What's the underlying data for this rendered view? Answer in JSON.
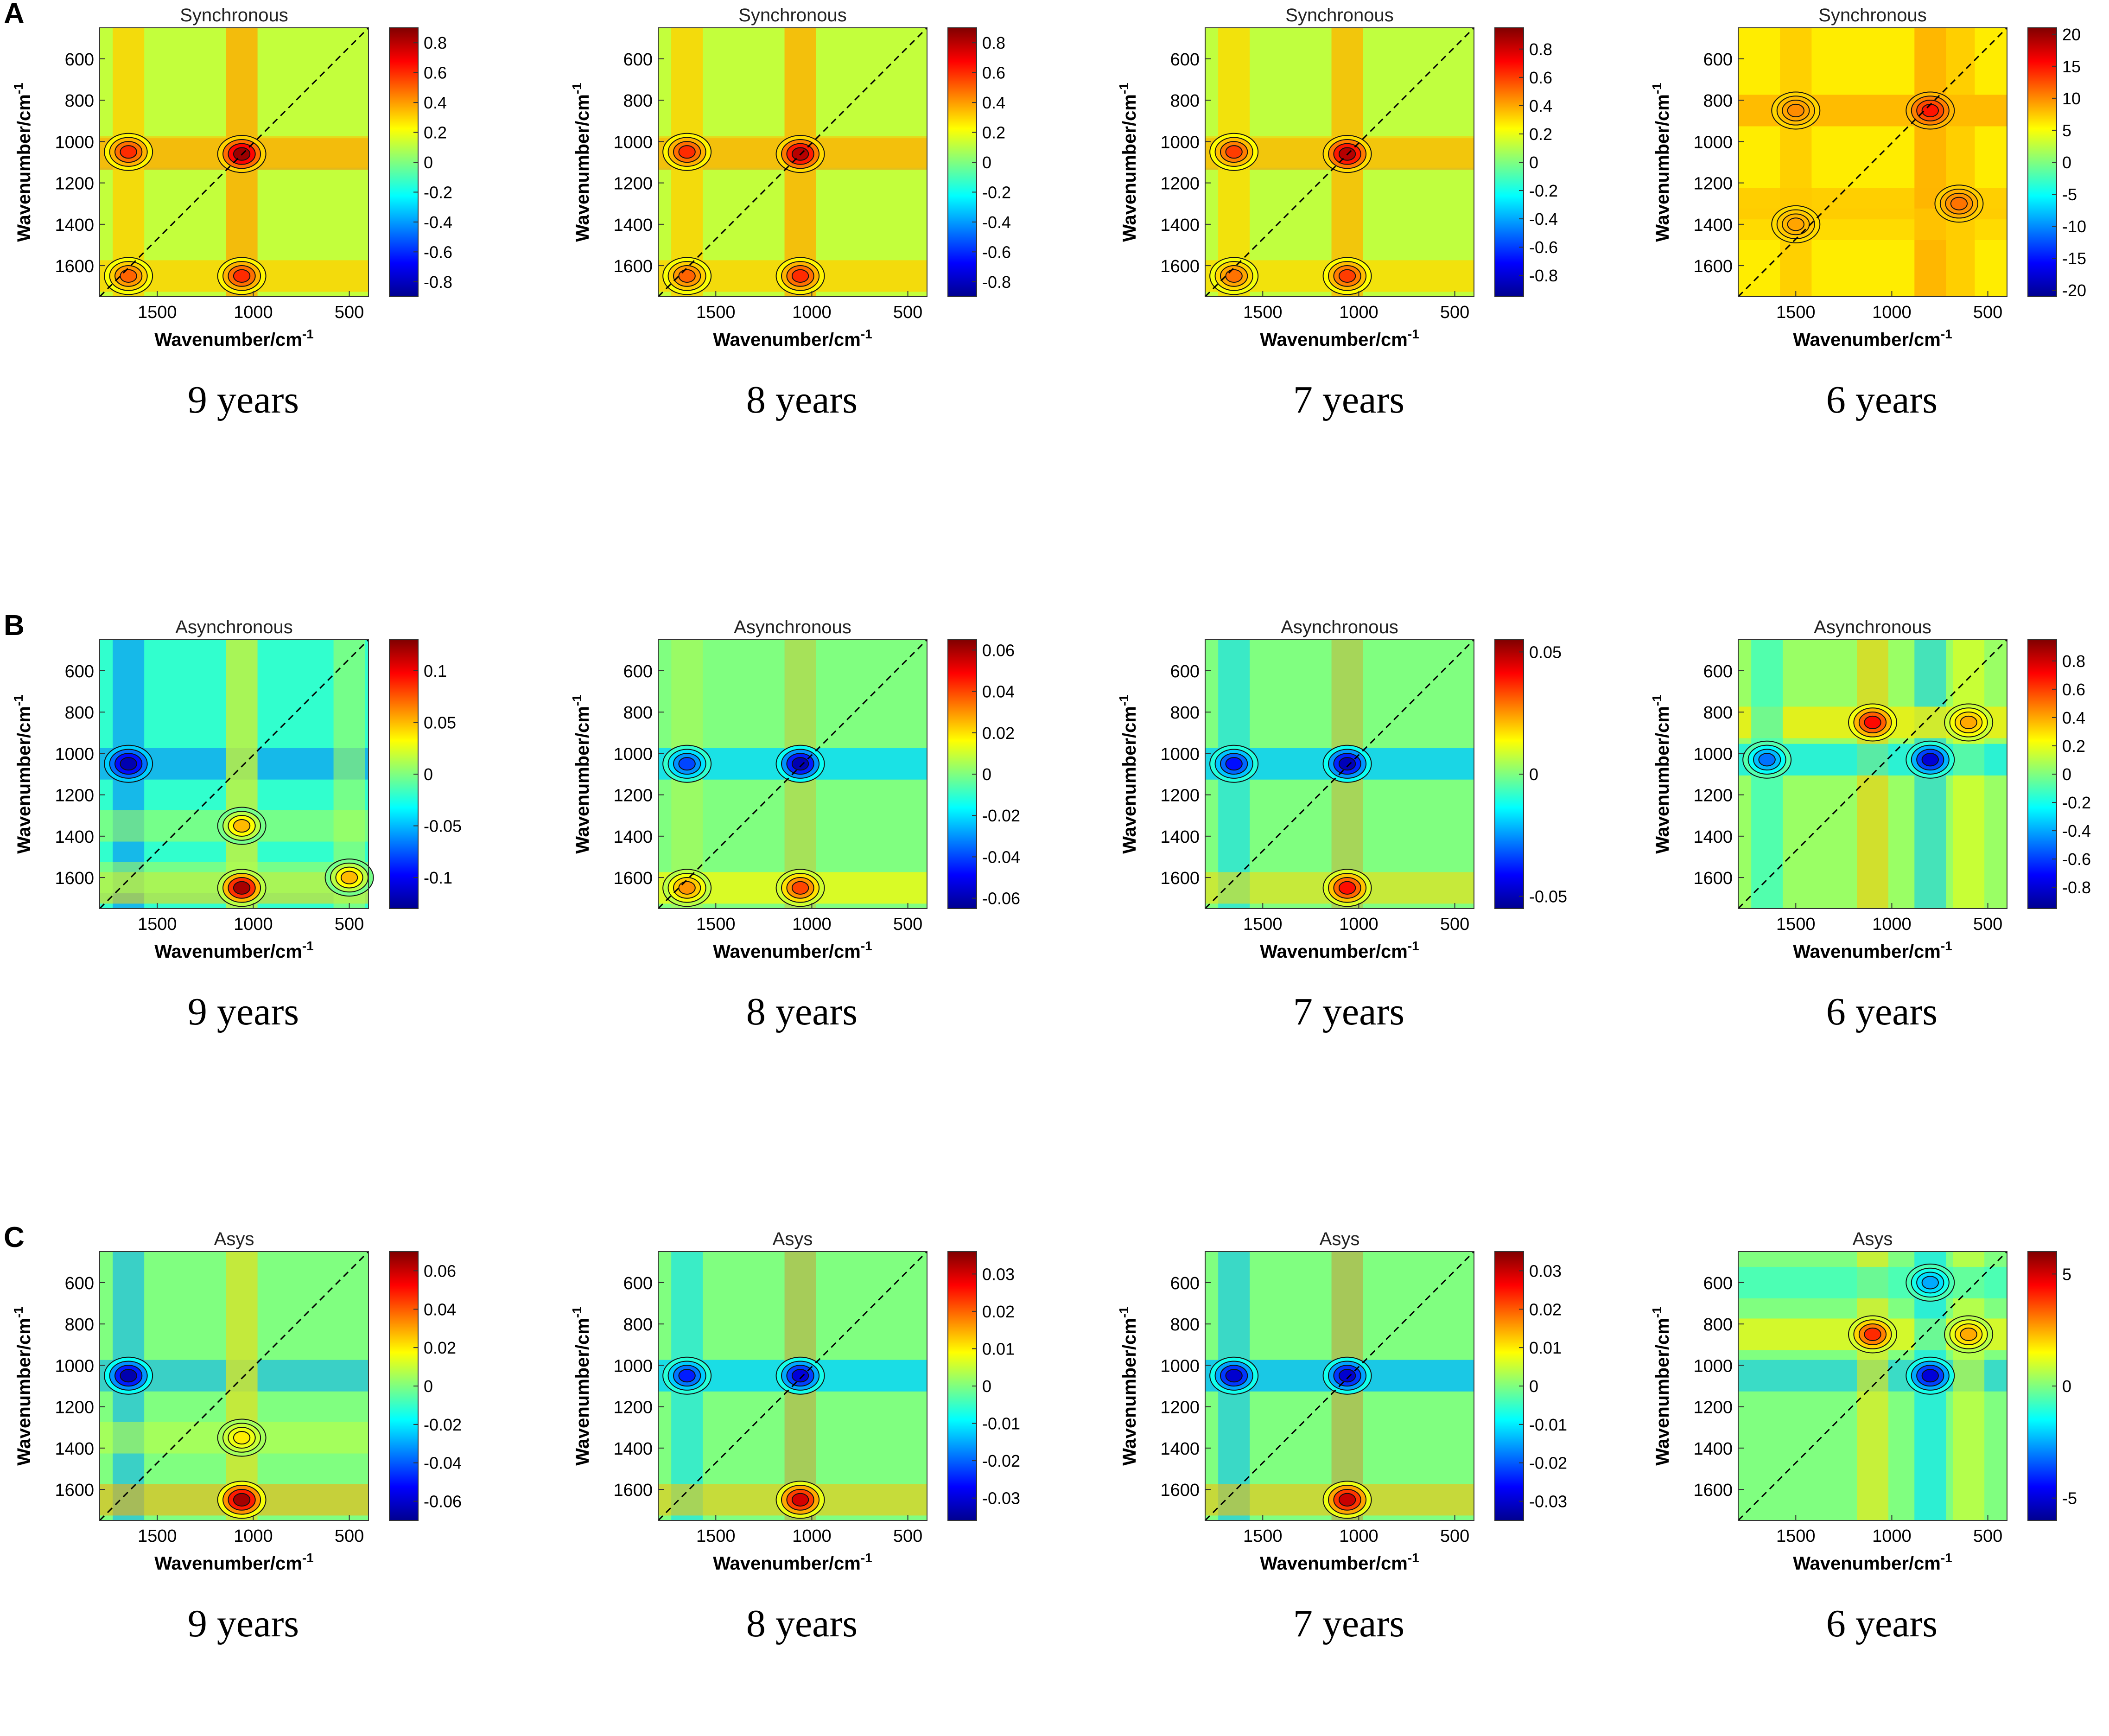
{
  "figure": {
    "rows": [
      {
        "letter": "A",
        "panel_title": "Synchronous"
      },
      {
        "letter": "B",
        "panel_title": "Asynchronous"
      },
      {
        "letter": "C",
        "panel_title": "Asys"
      }
    ],
    "columns": [
      "9 years",
      "8 years",
      "7 years",
      "6 years"
    ],
    "axis_label": "Wavenumber/cm",
    "axis_label_sup": "-1"
  },
  "chart_data": [
    {
      "type": "heatmap",
      "title": "Synchronous",
      "caption": "9 years",
      "xlabel": "Wavenumber/cm-1",
      "ylabel": "Wavenumber/cm-1",
      "x_ticks": [
        1500,
        1000,
        500
      ],
      "y_ticks": [
        600,
        800,
        1000,
        1200,
        1400,
        1600
      ],
      "xlim": [
        1800,
        400
      ],
      "ylim": [
        450,
        1750
      ],
      "colorbar": {
        "min": -0.9,
        "max": 0.9,
        "ticks": [
          -0.8,
          -0.6,
          -0.4,
          -0.2,
          0,
          0.2,
          0.4,
          0.6,
          0.8
        ],
        "labels": [
          "-0.8",
          "-0.6",
          "-0.4",
          "-0.2",
          "0",
          "0.2",
          "0.4",
          "0.6",
          "0.8"
        ]
      },
      "background": 0.12,
      "peaks": [
        {
          "x": 1060,
          "y": 1060,
          "value": 0.85
        },
        {
          "x": 1650,
          "y": 1050,
          "value": 0.6
        },
        {
          "x": 1060,
          "y": 1650,
          "value": 0.6
        },
        {
          "x": 1650,
          "y": 1650,
          "value": 0.5
        }
      ]
    },
    {
      "type": "heatmap",
      "title": "Synchronous",
      "caption": "8 years",
      "xlabel": "Wavenumber/cm-1",
      "ylabel": "Wavenumber/cm-1",
      "x_ticks": [
        1500,
        1000,
        500
      ],
      "y_ticks": [
        600,
        800,
        1000,
        1200,
        1400,
        1600
      ],
      "xlim": [
        1800,
        400
      ],
      "ylim": [
        450,
        1750
      ],
      "colorbar": {
        "min": -0.9,
        "max": 0.9,
        "ticks": [
          -0.8,
          -0.6,
          -0.4,
          -0.2,
          0,
          0.2,
          0.4,
          0.6,
          0.8
        ],
        "labels": [
          "-0.8",
          "-0.6",
          "-0.4",
          "-0.2",
          "0",
          "0.2",
          "0.4",
          "0.6",
          "0.8"
        ]
      },
      "background": 0.12,
      "peaks": [
        {
          "x": 1060,
          "y": 1060,
          "value": 0.8
        },
        {
          "x": 1650,
          "y": 1050,
          "value": 0.6
        },
        {
          "x": 1060,
          "y": 1650,
          "value": 0.6
        },
        {
          "x": 1650,
          "y": 1650,
          "value": 0.5
        }
      ]
    },
    {
      "type": "heatmap",
      "title": "Synchronous",
      "caption": "7 years",
      "xlabel": "Wavenumber/cm-1",
      "ylabel": "Wavenumber/cm-1",
      "x_ticks": [
        1500,
        1000,
        500
      ],
      "y_ticks": [
        600,
        800,
        1000,
        1200,
        1400,
        1600
      ],
      "xlim": [
        1800,
        400
      ],
      "ylim": [
        450,
        1750
      ],
      "colorbar": {
        "min": -0.95,
        "max": 0.95,
        "ticks": [
          -0.8,
          -0.6,
          -0.4,
          -0.2,
          0,
          0.2,
          0.4,
          0.6,
          0.8
        ],
        "labels": [
          "-0.8",
          "-0.6",
          "-0.4",
          "-0.2",
          "0",
          "0.2",
          "0.4",
          "0.6",
          "0.8"
        ]
      },
      "background": 0.12,
      "peaks": [
        {
          "x": 1060,
          "y": 1060,
          "value": 0.85
        },
        {
          "x": 1650,
          "y": 1050,
          "value": 0.6
        },
        {
          "x": 1060,
          "y": 1650,
          "value": 0.6
        },
        {
          "x": 1650,
          "y": 1650,
          "value": 0.5
        }
      ]
    },
    {
      "type": "heatmap",
      "title": "Synchronous",
      "caption": "6 years",
      "xlabel": "Wavenumber/cm-1",
      "ylabel": "Wavenumber/cm-1",
      "x_ticks": [
        1500,
        1000,
        500
      ],
      "y_ticks": [
        600,
        800,
        1000,
        1200,
        1400,
        1600
      ],
      "xlim": [
        1800,
        400
      ],
      "ylim": [
        450,
        1750
      ],
      "colorbar": {
        "min": -21,
        "max": 21,
        "ticks": [
          -20,
          -15,
          -10,
          -5,
          0,
          5,
          10,
          15,
          20
        ],
        "labels": [
          "-20",
          "-15",
          "-10",
          "-5",
          "0",
          "5",
          "10",
          "15",
          "20"
        ]
      },
      "background": 6,
      "peaks": [
        {
          "x": 800,
          "y": 850,
          "value": 15
        },
        {
          "x": 650,
          "y": 1300,
          "value": 11
        },
        {
          "x": 1500,
          "y": 850,
          "value": 10
        },
        {
          "x": 1500,
          "y": 1400,
          "value": 9
        }
      ]
    },
    {
      "type": "heatmap",
      "title": "Asynchronous",
      "caption": "9 years",
      "xlabel": "Wavenumber/cm-1",
      "ylabel": "Wavenumber/cm-1",
      "x_ticks": [
        1500,
        1000,
        500
      ],
      "y_ticks": [
        600,
        800,
        1000,
        1200,
        1400,
        1600
      ],
      "xlim": [
        1800,
        400
      ],
      "ylim": [
        450,
        1750
      ],
      "colorbar": {
        "min": -0.13,
        "max": 0.13,
        "ticks": [
          -0.1,
          -0.05,
          0,
          0.05,
          0.1
        ],
        "labels": [
          "-0.1",
          "-0.05",
          "0",
          "0.05",
          "0.1"
        ]
      },
      "background": -0.02,
      "peaks": [
        {
          "x": 1650,
          "y": 1050,
          "value": -0.12
        },
        {
          "x": 1060,
          "y": 1650,
          "value": 0.12
        },
        {
          "x": 1060,
          "y": 1350,
          "value": 0.05
        },
        {
          "x": 500,
          "y": 1600,
          "value": 0.05
        }
      ]
    },
    {
      "type": "heatmap",
      "title": "Asynchronous",
      "caption": "8 years",
      "xlabel": "Wavenumber/cm-1",
      "ylabel": "Wavenumber/cm-1",
      "x_ticks": [
        1500,
        1000,
        500
      ],
      "y_ticks": [
        600,
        800,
        1000,
        1200,
        1400,
        1600
      ],
      "xlim": [
        1800,
        400
      ],
      "ylim": [
        450,
        1750
      ],
      "colorbar": {
        "min": -0.065,
        "max": 0.065,
        "ticks": [
          -0.06,
          -0.04,
          -0.02,
          0,
          0.02,
          0.04,
          0.06
        ],
        "labels": [
          "-0.06",
          "-0.04",
          "-0.02",
          "0",
          "0.02",
          "0.04",
          "0.06"
        ]
      },
      "background": 0,
      "peaks": [
        {
          "x": 1060,
          "y": 1050,
          "value": -0.06
        },
        {
          "x": 1650,
          "y": 1050,
          "value": -0.04
        },
        {
          "x": 1060,
          "y": 1650,
          "value": 0.04
        },
        {
          "x": 1650,
          "y": 1650,
          "value": 0.03
        }
      ]
    },
    {
      "type": "heatmap",
      "title": "Asynchronous",
      "caption": "7 years",
      "xlabel": "Wavenumber/cm-1",
      "ylabel": "Wavenumber/cm-1",
      "x_ticks": [
        1500,
        1000,
        500
      ],
      "y_ticks": [
        600,
        800,
        1000,
        1200,
        1400,
        1600
      ],
      "xlim": [
        1800,
        400
      ],
      "ylim": [
        450,
        1750
      ],
      "colorbar": {
        "min": -0.055,
        "max": 0.055,
        "ticks": [
          -0.05,
          0,
          0.05
        ],
        "labels": [
          "-0.05",
          "0",
          "0.05"
        ]
      },
      "background": 0,
      "peaks": [
        {
          "x": 1060,
          "y": 1050,
          "value": -0.05
        },
        {
          "x": 1650,
          "y": 1050,
          "value": -0.04
        },
        {
          "x": 1060,
          "y": 1650,
          "value": 0.04
        }
      ]
    },
    {
      "type": "heatmap",
      "title": "Asynchronous",
      "caption": "6 years",
      "xlabel": "Wavenumber/cm-1",
      "ylabel": "Wavenumber/cm-1",
      "x_ticks": [
        1500,
        1000,
        500
      ],
      "y_ticks": [
        600,
        800,
        1000,
        1200,
        1400,
        1600
      ],
      "xlim": [
        1800,
        400
      ],
      "ylim": [
        450,
        1750
      ],
      "colorbar": {
        "min": -0.95,
        "max": 0.95,
        "ticks": [
          -0.8,
          -0.6,
          -0.4,
          -0.2,
          0,
          0.2,
          0.4,
          0.6,
          0.8
        ],
        "labels": [
          "-0.8",
          "-0.6",
          "-0.4",
          "-0.2",
          "0",
          "0.2",
          "0.4",
          "0.6",
          "0.8"
        ]
      },
      "background": 0.05,
      "peaks": [
        {
          "x": 800,
          "y": 1030,
          "value": -0.8
        },
        {
          "x": 1100,
          "y": 850,
          "value": 0.7
        },
        {
          "x": 600,
          "y": 850,
          "value": 0.4
        },
        {
          "x": 1650,
          "y": 1030,
          "value": -0.5
        }
      ]
    },
    {
      "type": "heatmap",
      "title": "Asys",
      "caption": "9 years",
      "xlabel": "Wavenumber/cm-1",
      "ylabel": "Wavenumber/cm-1",
      "x_ticks": [
        1500,
        1000,
        500
      ],
      "y_ticks": [
        600,
        800,
        1000,
        1200,
        1400,
        1600
      ],
      "xlim": [
        1800,
        400
      ],
      "ylim": [
        450,
        1750
      ],
      "colorbar": {
        "min": -0.07,
        "max": 0.07,
        "ticks": [
          -0.06,
          -0.04,
          -0.02,
          0,
          0.02,
          0.04,
          0.06
        ],
        "labels": [
          "-0.06",
          "-0.04",
          "-0.02",
          "0",
          "0.02",
          "0.04",
          "0.06"
        ]
      },
      "background": 0,
      "peaks": [
        {
          "x": 1650,
          "y": 1050,
          "value": -0.065
        },
        {
          "x": 1060,
          "y": 1650,
          "value": 0.065
        },
        {
          "x": 1060,
          "y": 1350,
          "value": 0.02
        }
      ]
    },
    {
      "type": "heatmap",
      "title": "Asys",
      "caption": "8 years",
      "xlabel": "Wavenumber/cm-1",
      "ylabel": "Wavenumber/cm-1",
      "x_ticks": [
        1500,
        1000,
        500
      ],
      "y_ticks": [
        600,
        800,
        1000,
        1200,
        1400,
        1600
      ],
      "xlim": [
        1800,
        400
      ],
      "ylim": [
        450,
        1750
      ],
      "colorbar": {
        "min": -0.036,
        "max": 0.036,
        "ticks": [
          -0.03,
          -0.02,
          -0.01,
          0,
          0.01,
          0.02,
          0.03
        ],
        "labels": [
          "-0.03",
          "-0.02",
          "-0.01",
          "0",
          "0.01",
          "0.02",
          "0.03"
        ]
      },
      "background": 0,
      "peaks": [
        {
          "x": 1060,
          "y": 1050,
          "value": -0.03
        },
        {
          "x": 1650,
          "y": 1050,
          "value": -0.025
        },
        {
          "x": 1060,
          "y": 1650,
          "value": 0.03
        }
      ]
    },
    {
      "type": "heatmap",
      "title": "Asys",
      "caption": "7 years",
      "xlabel": "Wavenumber/cm-1",
      "ylabel": "Wavenumber/cm-1",
      "x_ticks": [
        1500,
        1000,
        500
      ],
      "y_ticks": [
        600,
        800,
        1000,
        1200,
        1400,
        1600
      ],
      "xlim": [
        1800,
        400
      ],
      "ylim": [
        450,
        1750
      ],
      "colorbar": {
        "min": -0.035,
        "max": 0.035,
        "ticks": [
          -0.03,
          -0.02,
          -0.01,
          0,
          0.01,
          0.02,
          0.03
        ],
        "labels": [
          "-0.03",
          "-0.02",
          "-0.01",
          "0",
          "0.01",
          "0.02",
          "0.03"
        ]
      },
      "background": 0,
      "peaks": [
        {
          "x": 1060,
          "y": 1050,
          "value": -0.03
        },
        {
          "x": 1650,
          "y": 1050,
          "value": -0.03
        },
        {
          "x": 1060,
          "y": 1650,
          "value": 0.03
        }
      ]
    },
    {
      "type": "heatmap",
      "title": "Asys",
      "caption": "6 years",
      "xlabel": "Wavenumber/cm-1",
      "ylabel": "Wavenumber/cm-1",
      "x_ticks": [
        1500,
        1000,
        500
      ],
      "y_ticks": [
        600,
        800,
        1000,
        1200,
        1400,
        1600
      ],
      "xlim": [
        1800,
        400
      ],
      "ylim": [
        450,
        1750
      ],
      "colorbar": {
        "min": -6,
        "max": 6,
        "ticks": [
          -5,
          0,
          5
        ],
        "labels": [
          "-5",
          "0",
          "5"
        ]
      },
      "background": 0,
      "peaks": [
        {
          "x": 800,
          "y": 1050,
          "value": -5
        },
        {
          "x": 1100,
          "y": 850,
          "value": 4
        },
        {
          "x": 600,
          "y": 850,
          "value": 2.5
        },
        {
          "x": 800,
          "y": 600,
          "value": -2.5
        }
      ]
    }
  ]
}
